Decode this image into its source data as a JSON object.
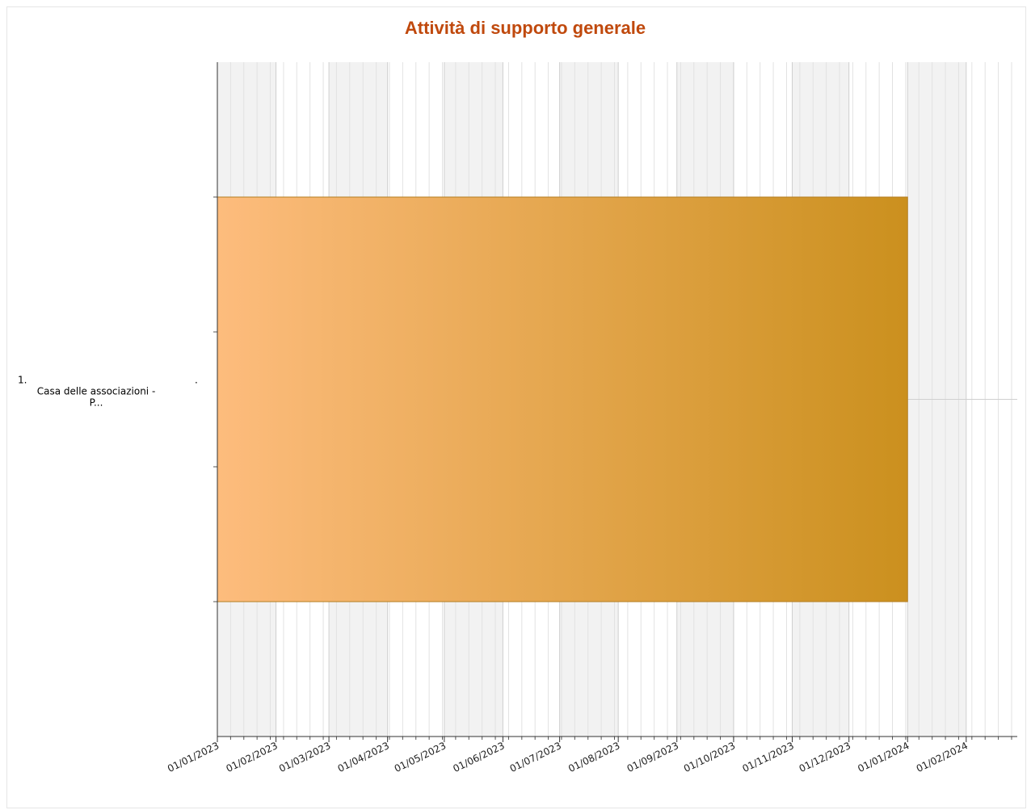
{
  "chart_data": {
    "type": "gantt",
    "title": "Attività di supporto generale",
    "x_axis": {
      "start": "2023-01-01",
      "end": "2024-02-28",
      "tick_labels": [
        "01/01/2023",
        "01/02/2023",
        "01/03/2023",
        "01/04/2023",
        "01/05/2023",
        "01/06/2023",
        "01/07/2023",
        "01/08/2023",
        "01/09/2023",
        "01/10/2023",
        "01/11/2023",
        "01/12/2023",
        "01/01/2024",
        "01/02/2024"
      ],
      "tick_dates": [
        "2023-01-01",
        "2023-02-01",
        "2023-03-01",
        "2023-04-01",
        "2023-05-01",
        "2023-06-01",
        "2023-07-01",
        "2023-08-01",
        "2023-09-01",
        "2023-10-01",
        "2023-11-01",
        "2023-12-01",
        "2024-01-01",
        "2024-02-01"
      ],
      "minor_ticks": "weekly",
      "alternate_month_shading": true
    },
    "categories": [
      {
        "label_lines": [
          "1.",
          "Casa delle associazioni -",
          "P..."
        ],
        "label_trailing_dot": "."
      }
    ],
    "tasks": [
      {
        "category_index": 0,
        "start": "2023-01-01",
        "end": "2024-01-01",
        "gradient_colors": [
          "#fdbc7d",
          "#cb901e"
        ],
        "border_color": "#b47e22"
      }
    ],
    "grid": true
  }
}
